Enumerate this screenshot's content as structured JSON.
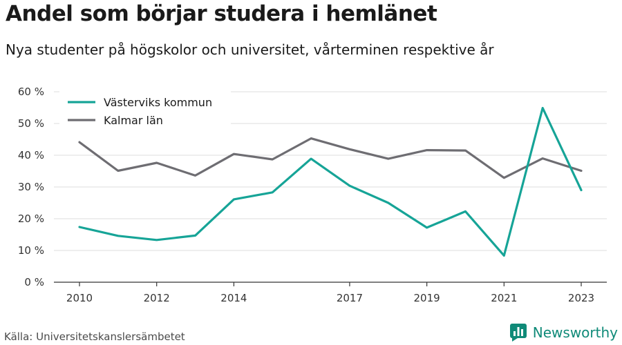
{
  "header": {
    "title": "Andel som börjar studera i hemlänet",
    "subtitle": "Nya studenter på högskolor och universitet, vårterminen respektive år"
  },
  "footer": {
    "source": "Källa: Universitetskanslersämbetet",
    "brand": "Newsworthy",
    "brand_icon": "newsworthy-logo-icon",
    "brand_color": "#0f8a78"
  },
  "chart_data": {
    "type": "line",
    "title": "Andel som börjar studera i hemlänet",
    "subtitle": "Nya studenter på högskolor och universitet, vårterminen respektive år",
    "xlabel": "",
    "ylabel": "",
    "x": [
      2010,
      2011,
      2012,
      2013,
      2014,
      2015,
      2016,
      2017,
      2018,
      2019,
      2020,
      2021,
      2022,
      2023
    ],
    "x_tick_labels": [
      "2010",
      "2012",
      "2014",
      "2017",
      "2019",
      "2021",
      "2023"
    ],
    "x_tick_values": [
      2010,
      2012,
      2014,
      2017,
      2019,
      2021,
      2023
    ],
    "y_ticks": [
      0,
      10,
      20,
      30,
      40,
      50,
      60
    ],
    "y_tick_labels": [
      "0 %",
      "10 %",
      "20 %",
      "30 %",
      "40 %",
      "50 %",
      "60 %"
    ],
    "xlim": [
      2010,
      2023
    ],
    "ylim": [
      0,
      60
    ],
    "grid": true,
    "legend_position": "top-left",
    "series": [
      {
        "name": "Västerviks kommun",
        "color": "#16a497",
        "values": [
          17.4,
          14.6,
          13.3,
          14.7,
          26.1,
          28.3,
          38.9,
          30.4,
          25.0,
          17.2,
          22.3,
          8.4,
          54.9,
          29.0
        ]
      },
      {
        "name": "Kalmar län",
        "color": "#6e6d72",
        "values": [
          44.1,
          35.1,
          37.6,
          33.6,
          40.4,
          38.7,
          45.3,
          41.9,
          38.9,
          41.6,
          41.5,
          32.9,
          39.0,
          35.1
        ]
      }
    ]
  }
}
